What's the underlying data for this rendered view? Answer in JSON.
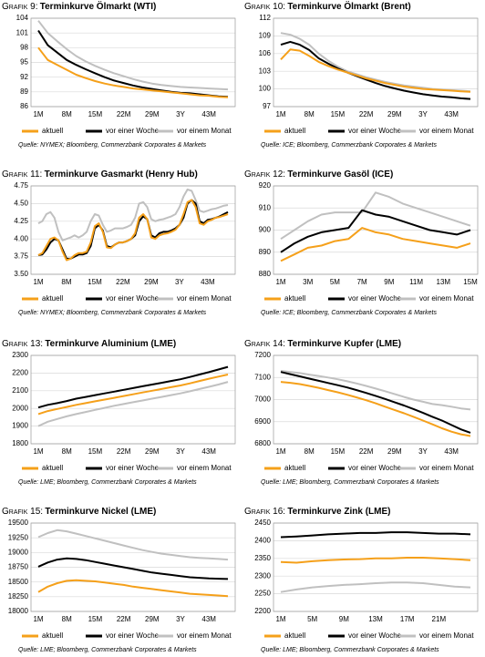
{
  "chart_data": [
    {
      "type": "line",
      "figure": "Grafik 9:",
      "title": "Terminkurve Ölmarkt (WTI)",
      "source": "Quelle: NYMEX; Bloomberg, Commerzbank Corporates & Markets",
      "categories": [
        "1M",
        null,
        null,
        "8M",
        null,
        null,
        "15M",
        null,
        null,
        "22M",
        null,
        null,
        "29M",
        null,
        null,
        "3Y",
        null,
        null,
        "43M",
        null,
        null
      ],
      "ylim": [
        86,
        104
      ],
      "yticks": [
        86,
        89,
        92,
        95,
        98,
        101,
        104
      ],
      "grid": true,
      "series": [
        {
          "name": "aktuell",
          "color": "#f5a01a",
          "values": [
            98,
            95.5,
            94.5,
            93.5,
            92.5,
            91.8,
            91.2,
            90.7,
            90.3,
            90,
            89.7,
            89.5,
            89.3,
            89.1,
            88.9,
            88.7,
            88.5,
            88.3,
            88.2,
            88,
            87.9
          ]
        },
        {
          "name": "vor einer Woche",
          "color": "#000000",
          "values": [
            101.5,
            98.5,
            97,
            95.5,
            94.5,
            93.6,
            92.8,
            92,
            91.3,
            90.8,
            90.3,
            89.9,
            89.6,
            89.3,
            89,
            88.8,
            88.7,
            88.5,
            88.3,
            88.1,
            88
          ]
        },
        {
          "name": "vor einem Monat",
          "color": "#c0c0c0",
          "values": [
            103.5,
            101,
            99.3,
            97.7,
            96.3,
            95.2,
            94.3,
            93.5,
            92.8,
            92.2,
            91.6,
            91.1,
            90.7,
            90.4,
            90.2,
            90,
            89.9,
            89.8,
            89.7,
            89.6,
            89.5
          ]
        }
      ]
    },
    {
      "type": "line",
      "figure": "Grafik 10:",
      "title": "Terminkurve Ölmarkt (Brent)",
      "source": "Quelle: ICE; Bloomberg, Commerzbank Corporates & Markets",
      "categories": [
        "1M",
        null,
        null,
        "8M",
        null,
        null,
        "15M",
        null,
        null,
        "22M",
        null,
        null,
        "29M",
        null,
        null,
        "3Y",
        null,
        null,
        "43M",
        null,
        null
      ],
      "ylim": [
        97,
        112
      ],
      "yticks": [
        97,
        100,
        103,
        106,
        109,
        112
      ],
      "grid": true,
      "series": [
        {
          "name": "aktuell",
          "color": "#f5a01a",
          "values": [
            105,
            106.7,
            106.5,
            105.6,
            104.6,
            103.9,
            103.3,
            102.8,
            102.3,
            101.8,
            101.4,
            101,
            100.7,
            100.4,
            100.2,
            100,
            99.9,
            99.8,
            99.7,
            99.6,
            99.5
          ]
        },
        {
          "name": "vor einer Woche",
          "color": "#000000",
          "values": [
            107.5,
            108,
            107.5,
            106.6,
            105.2,
            104.3,
            103.5,
            102.8,
            102.2,
            101.6,
            101,
            100.5,
            100.1,
            99.7,
            99.4,
            99.1,
            98.9,
            98.7,
            98.6,
            98.4,
            98.3
          ]
        },
        {
          "name": "vor einem Monat",
          "color": "#c0c0c0",
          "values": [
            109.5,
            109.2,
            108.5,
            107.5,
            106,
            104.8,
            103.8,
            103,
            102.5,
            102,
            101.6,
            101.2,
            100.9,
            100.6,
            100.4,
            100.2,
            100,
            99.9,
            99.8,
            99.7,
            99.6
          ]
        }
      ]
    },
    {
      "type": "line",
      "figure": "Grafik 11:",
      "title": "Terminkurve Gasmarkt (Henry Hub)",
      "source": "Quelle: NYMEX; Bloomberg, Commerzbank Corporates & Markets",
      "categories": [
        "1M",
        null,
        null,
        null,
        null,
        null,
        null,
        "8M",
        null,
        null,
        null,
        null,
        null,
        null,
        "15M",
        null,
        null,
        null,
        null,
        null,
        null,
        "22M",
        null,
        null,
        null,
        null,
        null,
        null,
        "29M",
        null,
        null,
        null,
        null,
        null,
        null,
        "3Y",
        null,
        null,
        null,
        null,
        null,
        null,
        "43M",
        null,
        null,
        null,
        null,
        null
      ],
      "ylim": [
        3.5,
        4.75
      ],
      "yticks": [
        {
          "value": 3.5,
          "label": "3.50"
        },
        3.75,
        {
          "value": 4,
          "label": "4.00"
        },
        4.25,
        {
          "value": 4.5,
          "label": "4.50"
        },
        4.75
      ],
      "grid": true,
      "series": [
        {
          "name": "aktuell",
          "color": "#f5a01a",
          "values": [
            3.77,
            3.8,
            3.9,
            4.0,
            4.02,
            3.98,
            3.82,
            3.7,
            3.72,
            3.77,
            3.8,
            3.8,
            3.82,
            3.95,
            4.18,
            4.22,
            4.1,
            3.88,
            3.87,
            3.92,
            3.95,
            3.95,
            3.97,
            4.0,
            4.08,
            4.3,
            4.35,
            4.28,
            4.02,
            4.0,
            4.05,
            4.07,
            4.08,
            4.1,
            4.13,
            4.2,
            4.35,
            4.52,
            4.55,
            4.45,
            4.22,
            4.2,
            4.25,
            4.27,
            4.3,
            4.31,
            4.33,
            4.35
          ]
        },
        {
          "name": "vor einer Woche",
          "color": "#000000",
          "values": [
            3.77,
            3.78,
            3.85,
            3.95,
            4.0,
            3.98,
            3.85,
            3.72,
            3.72,
            3.75,
            3.78,
            3.78,
            3.8,
            3.9,
            4.15,
            4.2,
            4.12,
            3.9,
            3.88,
            3.92,
            3.95,
            3.95,
            3.97,
            4.0,
            4.05,
            4.25,
            4.32,
            4.28,
            4.05,
            4.02,
            4.08,
            4.1,
            4.1,
            4.12,
            4.15,
            4.2,
            4.3,
            4.5,
            4.55,
            4.5,
            4.25,
            4.22,
            4.27,
            4.28,
            4.3,
            4.32,
            4.35,
            4.38
          ]
        },
        {
          "name": "vor einem Monat",
          "color": "#c0c0c0",
          "values": [
            4.22,
            4.25,
            4.35,
            4.38,
            4.3,
            4.1,
            3.98,
            4.0,
            4.02,
            4.05,
            4.02,
            4.05,
            4.1,
            4.25,
            4.35,
            4.33,
            4.2,
            4.1,
            4.12,
            4.15,
            4.15,
            4.15,
            4.17,
            4.2,
            4.3,
            4.5,
            4.52,
            4.45,
            4.28,
            4.25,
            4.27,
            4.28,
            4.3,
            4.32,
            4.35,
            4.45,
            4.6,
            4.7,
            4.68,
            4.55,
            4.4,
            4.38,
            4.4,
            4.42,
            4.43,
            4.45,
            4.47,
            4.48
          ]
        }
      ]
    },
    {
      "type": "line",
      "figure": "Grafik 12:",
      "title": "Terminkurve Gasöl (ICE)",
      "source": "Quelle: ICE; Bloomberg, Commerzbank Corporates & Markets",
      "categories": [
        "1M",
        null,
        "3M",
        null,
        "5M",
        null,
        "7M",
        null,
        "9M",
        null,
        "11M",
        null,
        "13M",
        null,
        "15M"
      ],
      "ylim": [
        880,
        920
      ],
      "yticks": [
        880,
        890,
        900,
        910,
        920
      ],
      "grid": true,
      "series": [
        {
          "name": "aktuell",
          "color": "#f5a01a",
          "values": [
            886,
            889,
            892,
            893,
            895,
            896,
            901,
            899,
            898,
            896,
            895,
            894,
            893,
            892,
            894
          ]
        },
        {
          "name": "vor einer Woche",
          "color": "#000000",
          "values": [
            890,
            894,
            897,
            899,
            900,
            901,
            909,
            907,
            906,
            904,
            902,
            900,
            899,
            898,
            900
          ]
        },
        {
          "name": "vor einem Monat",
          "color": "#c0c0c0",
          "values": [
            896,
            900,
            904,
            907,
            908,
            908,
            908,
            917,
            915,
            912,
            910,
            908,
            906,
            904,
            902
          ]
        }
      ]
    },
    {
      "type": "line",
      "figure": "Grafik 13:",
      "title": "Terminkurve Aluminium (LME)",
      "source": "Quelle: LME; Bloomberg, Commerzbank Corporates & Markets",
      "categories": [
        "1M",
        null,
        null,
        "8M",
        null,
        null,
        "15M",
        null,
        null,
        "22M",
        null,
        null,
        "29M",
        null,
        null,
        "3Y",
        null,
        null,
        "43M",
        null,
        null
      ],
      "ylim": [
        1800,
        2300
      ],
      "yticks": [
        1800,
        1900,
        2000,
        2100,
        2200,
        2300
      ],
      "grid": true,
      "series": [
        {
          "name": "aktuell",
          "color": "#f5a01a",
          "values": [
            1968,
            1985,
            1997,
            2008,
            2020,
            2030,
            2040,
            2050,
            2060,
            2070,
            2080,
            2090,
            2100,
            2110,
            2120,
            2130,
            2142,
            2155,
            2168,
            2180,
            2192
          ]
        },
        {
          "name": "vor einer Woche",
          "color": "#000000",
          "values": [
            2005,
            2020,
            2030,
            2042,
            2055,
            2065,
            2075,
            2085,
            2095,
            2105,
            2115,
            2125,
            2135,
            2145,
            2155,
            2165,
            2178,
            2192,
            2205,
            2220,
            2235
          ]
        },
        {
          "name": "vor einem Monat",
          "color": "#c0c0c0",
          "values": [
            1900,
            1925,
            1940,
            1955,
            1968,
            1980,
            1992,
            2003,
            2015,
            2025,
            2035,
            2045,
            2055,
            2065,
            2075,
            2085,
            2097,
            2110,
            2122,
            2135,
            2150
          ]
        }
      ]
    },
    {
      "type": "line",
      "figure": "Grafik 14:",
      "title": "Terminkurve Kupfer (LME)",
      "source": "Quelle: LME; Bloomberg, Commerzbank Corporates & Markets",
      "categories": [
        "1M",
        null,
        null,
        "8M",
        null,
        null,
        "15M",
        null,
        null,
        "22M",
        null,
        null,
        "29M",
        null,
        null,
        "3Y",
        null,
        null,
        "43M",
        null,
        null
      ],
      "ylim": [
        6800,
        7200
      ],
      "yticks": [
        6800,
        6900,
        7000,
        7100,
        7200
      ],
      "grid": true,
      "series": [
        {
          "name": "aktuell",
          "color": "#f5a01a",
          "values": [
            7080,
            7076,
            7070,
            7062,
            7053,
            7043,
            7033,
            7022,
            7010,
            6997,
            6983,
            6968,
            6953,
            6938,
            6922,
            6905,
            6888,
            6870,
            6855,
            6843,
            6835
          ]
        },
        {
          "name": "vor einer Woche",
          "color": "#000000",
          "values": [
            7125,
            7115,
            7105,
            7095,
            7085,
            7075,
            7065,
            7055,
            7043,
            7030,
            7017,
            7003,
            6988,
            6973,
            6957,
            6940,
            6922,
            6905,
            6885,
            6865,
            6850
          ]
        },
        {
          "name": "vor einem Monat",
          "color": "#c0c0c0",
          "values": [
            7130,
            7125,
            7120,
            7113,
            7107,
            7100,
            7092,
            7083,
            7073,
            7062,
            7050,
            7038,
            7025,
            7012,
            7000,
            6990,
            6980,
            6975,
            6968,
            6960,
            6955
          ]
        }
      ]
    },
    {
      "type": "line",
      "figure": "Grafik 15:",
      "title": "Terminkurve Nickel (LME)",
      "source": "Quelle: LME; Bloomberg, Commerzbank Corporates & Markets",
      "categories": [
        "1M",
        null,
        null,
        "8M",
        null,
        null,
        "15M",
        null,
        null,
        "22M",
        null,
        null,
        "29M",
        null,
        null,
        "3Y",
        null,
        null,
        "43M",
        null,
        null
      ],
      "ylim": [
        18000,
        19500
      ],
      "yticks": [
        18000,
        18250,
        18500,
        18750,
        19000,
        19250,
        19500
      ],
      "grid": true,
      "series": [
        {
          "name": "aktuell",
          "color": "#f5a01a",
          "values": [
            18330,
            18420,
            18480,
            18520,
            18530,
            18520,
            18510,
            18490,
            18470,
            18450,
            18420,
            18400,
            18380,
            18360,
            18340,
            18320,
            18300,
            18290,
            18280,
            18270,
            18260
          ]
        },
        {
          "name": "vor einer Woche",
          "color": "#000000",
          "values": [
            18760,
            18830,
            18880,
            18900,
            18890,
            18870,
            18840,
            18810,
            18780,
            18750,
            18720,
            18690,
            18660,
            18640,
            18620,
            18600,
            18580,
            18570,
            18560,
            18555,
            18550
          ]
        },
        {
          "name": "vor einem Monat",
          "color": "#c0c0c0",
          "values": [
            19260,
            19330,
            19380,
            19360,
            19320,
            19280,
            19240,
            19200,
            19160,
            19120,
            19080,
            19040,
            19010,
            18980,
            18960,
            18940,
            18920,
            18910,
            18900,
            18890,
            18880
          ]
        }
      ]
    },
    {
      "type": "line",
      "figure": "Grafik 16:",
      "title": "Terminkurve Zink (LME)",
      "source": "Quelle: LME; Bloomberg, Commerzbank Corporates & Markets",
      "categories": [
        "1M",
        null,
        "5M",
        null,
        "9M",
        null,
        "13M",
        null,
        "17M",
        null,
        "21M",
        null,
        null
      ],
      "ylim": [
        2200,
        2450
      ],
      "yticks": [
        2200,
        2250,
        2300,
        2350,
        2400,
        2450
      ],
      "grid": true,
      "series": [
        {
          "name": "aktuell",
          "color": "#f5a01a",
          "values": [
            2340,
            2338,
            2342,
            2345,
            2347,
            2348,
            2350,
            2350,
            2352,
            2352,
            2350,
            2348,
            2345
          ]
        },
        {
          "name": "vor einer Woche",
          "color": "#000000",
          "values": [
            2410,
            2412,
            2415,
            2418,
            2420,
            2422,
            2422,
            2424,
            2424,
            2422,
            2420,
            2420,
            2418
          ]
        },
        {
          "name": "vor einem Monat",
          "color": "#c0c0c0",
          "values": [
            2255,
            2262,
            2268,
            2272,
            2275,
            2277,
            2280,
            2282,
            2282,
            2280,
            2275,
            2270,
            2268
          ]
        }
      ]
    }
  ]
}
